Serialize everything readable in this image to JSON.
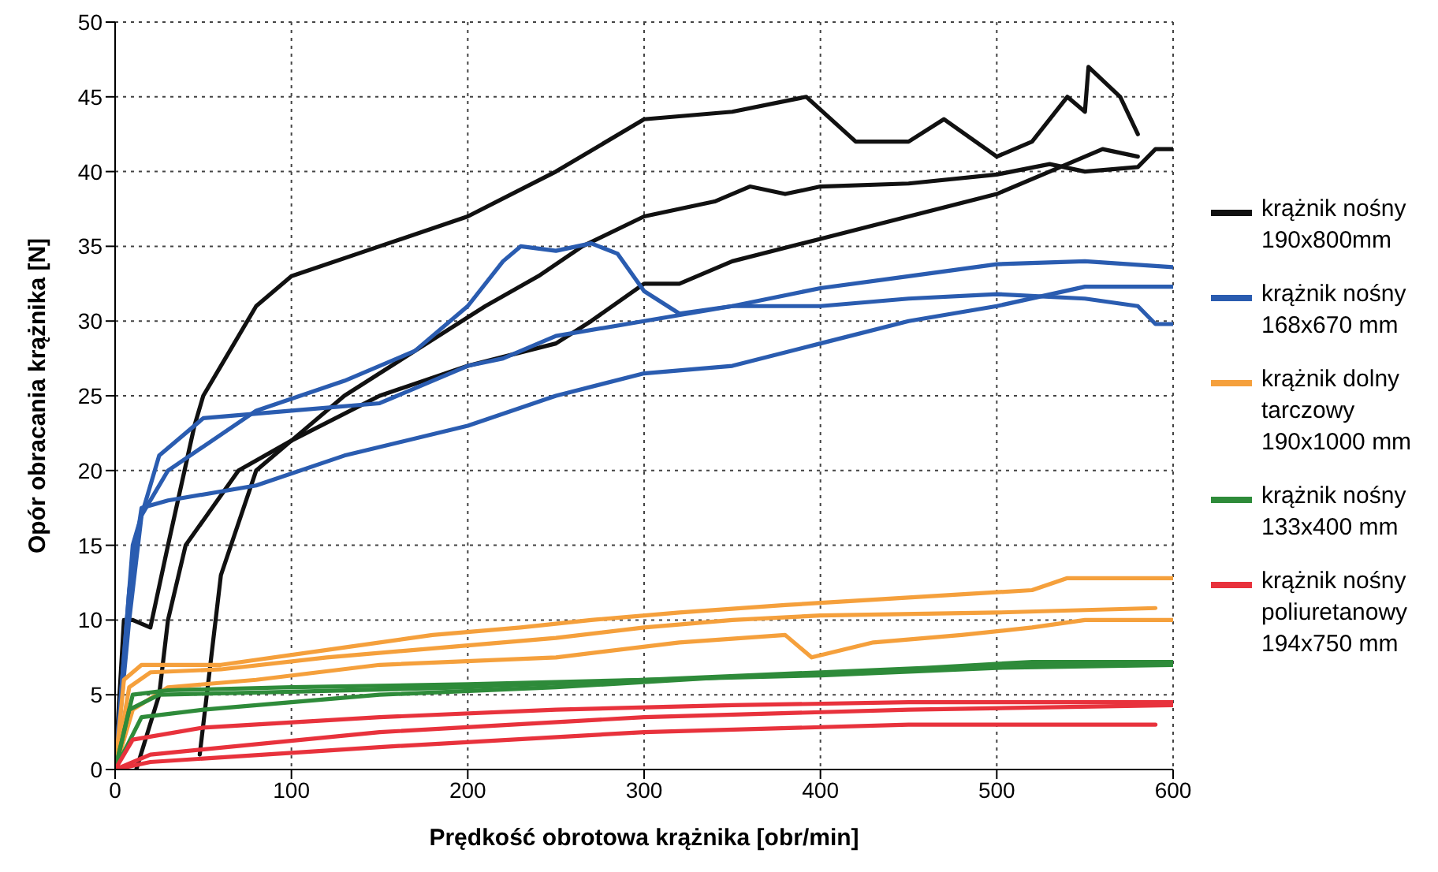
{
  "chart_data": {
    "type": "line",
    "xlabel": "Prędkość obrotowa krążnika [obr/min]",
    "ylabel": "Opór obracania krążnika [N]",
    "xlim": [
      0,
      600
    ],
    "xticks": [
      0,
      100,
      200,
      300,
      400,
      500,
      600
    ],
    "ylim": [
      0,
      50
    ],
    "yticks": [
      0,
      5,
      10,
      15,
      20,
      25,
      30,
      35,
      40,
      45,
      50
    ],
    "grid": true,
    "legend": "right",
    "series": [
      {
        "name": "krążnik nośny\n190x800mm",
        "color": "#111111",
        "x": [
          0,
          5,
          10,
          20,
          30,
          45,
          50,
          60,
          80,
          100,
          150,
          200,
          250,
          300,
          350,
          392,
          420,
          450,
          470,
          500,
          520,
          540,
          550,
          552,
          570,
          580
        ],
        "values": [
          0,
          10,
          10,
          9.5,
          15,
          23,
          25,
          27,
          31,
          33,
          35,
          37,
          40,
          43.5,
          44,
          45,
          42,
          42,
          43.5,
          41,
          42,
          45,
          44,
          47,
          45,
          42.5
        ]
      },
      {
        "color": "#111111",
        "x": [
          12,
          25,
          30,
          40,
          70,
          100,
          130,
          170,
          210,
          240,
          265,
          300,
          340,
          360,
          380,
          400,
          450,
          500,
          530,
          550,
          580,
          590,
          600
        ],
        "values": [
          0,
          5,
          10,
          15,
          20,
          22,
          25,
          28,
          31,
          33,
          35,
          37,
          38,
          39,
          38.5,
          39,
          39.2,
          39.8,
          40.5,
          40,
          40.3,
          41.5,
          41.5
        ]
      },
      {
        "color": "#111111",
        "x": [
          48,
          60,
          80,
          100,
          150,
          200,
          250,
          270,
          300,
          320,
          350,
          400,
          450,
          500,
          530,
          550,
          560,
          580
        ],
        "values": [
          1,
          13,
          20,
          22,
          25,
          27,
          28.5,
          30,
          32.5,
          32.5,
          34,
          35.5,
          37,
          38.5,
          40,
          41,
          41.5,
          41
        ]
      },
      {
        "name": "krążnik nośny\n168x670 mm",
        "color": "#2a5cb0",
        "x": [
          0,
          8,
          15,
          30,
          80,
          130,
          170,
          200,
          220,
          230,
          250,
          270,
          285,
          300,
          320,
          350,
          400,
          450,
          500,
          550,
          580,
          590,
          600
        ],
        "values": [
          0,
          10,
          17,
          20,
          24,
          26,
          28,
          31,
          34,
          35,
          34.7,
          35.2,
          34.5,
          32,
          30.5,
          31,
          31,
          31.5,
          31.8,
          31.5,
          31,
          29.8,
          29.8
        ]
      },
      {
        "color": "#2a5cb0",
        "x": [
          0,
          10,
          25,
          50,
          100,
          150,
          200,
          220,
          250,
          300,
          350,
          400,
          450,
          500,
          550,
          600
        ],
        "values": [
          0,
          15,
          21,
          23.5,
          24,
          24.5,
          27,
          27.5,
          29,
          30,
          31,
          32.2,
          33,
          33.8,
          34,
          33.6
        ]
      },
      {
        "color": "#2a5cb0",
        "x": [
          0,
          8,
          15,
          30,
          80,
          130,
          200,
          250,
          300,
          350,
          400,
          450,
          500,
          550,
          600
        ],
        "values": [
          0,
          12,
          17.5,
          18,
          19,
          21,
          23,
          25,
          26.5,
          27,
          28.5,
          30,
          31,
          32.3,
          32.3
        ]
      },
      {
        "name": "krążnik dolny\ntarczowy\n190x1000 mm",
        "color": "#f5a03c",
        "x": [
          0,
          5,
          15,
          60,
          120,
          180,
          230,
          270,
          320,
          380,
          450,
          520,
          540,
          600
        ],
        "values": [
          0,
          6,
          7,
          7,
          8,
          9,
          9.5,
          10,
          10.5,
          11,
          11.5,
          12,
          12.8,
          12.8
        ]
      },
      {
        "color": "#f5a03c",
        "x": [
          0,
          8,
          20,
          60,
          120,
          200,
          250,
          300,
          350,
          400,
          500,
          590
        ],
        "values": [
          0,
          5.5,
          6.5,
          6.7,
          7.5,
          8.3,
          8.8,
          9.5,
          10,
          10.3,
          10.5,
          10.8
        ]
      },
      {
        "color": "#f5a03c",
        "x": [
          0,
          10,
          30,
          80,
          150,
          250,
          320,
          380,
          395,
          430,
          480,
          520,
          550,
          600
        ],
        "values": [
          0,
          4,
          5.5,
          6,
          7,
          7.5,
          8.5,
          9,
          7.5,
          8.5,
          9,
          9.5,
          10,
          10
        ]
      },
      {
        "name": "krążnik nośny\n133x400 mm",
        "color": "#2e8b3a",
        "x": [
          0,
          10,
          30,
          100,
          200,
          300,
          400,
          460,
          520,
          600
        ],
        "values": [
          0,
          5,
          5.3,
          5.5,
          5.7,
          6,
          6.5,
          6.8,
          7.2,
          7.2
        ]
      },
      {
        "color": "#2e8b3a",
        "x": [
          0,
          8,
          25,
          100,
          200,
          300,
          400,
          500,
          600
        ],
        "values": [
          0,
          4,
          5,
          5.2,
          5.5,
          6,
          6.3,
          6.8,
          7
        ]
      },
      {
        "color": "#2e8b3a",
        "x": [
          0,
          15,
          50,
          150,
          250,
          350,
          450,
          550,
          600
        ],
        "values": [
          0,
          3.5,
          4,
          5,
          5.5,
          6.2,
          6.6,
          7.1,
          7
        ]
      },
      {
        "name": "krążnik nośny\npoliuretanowy\n194x750 mm",
        "color": "#e8323c",
        "x": [
          0,
          10,
          50,
          150,
          250,
          350,
          450,
          600
        ],
        "values": [
          0,
          2,
          2.8,
          3.5,
          4,
          4.3,
          4.5,
          4.5
        ]
      },
      {
        "color": "#e8323c",
        "x": [
          0,
          20,
          150,
          300,
          450,
          600
        ],
        "values": [
          0,
          1,
          2.5,
          3.5,
          4,
          4.3
        ]
      },
      {
        "color": "#e8323c",
        "x": [
          0,
          20,
          150,
          300,
          450,
          590
        ],
        "values": [
          0,
          0.5,
          1.5,
          2.5,
          3,
          3
        ]
      }
    ]
  }
}
